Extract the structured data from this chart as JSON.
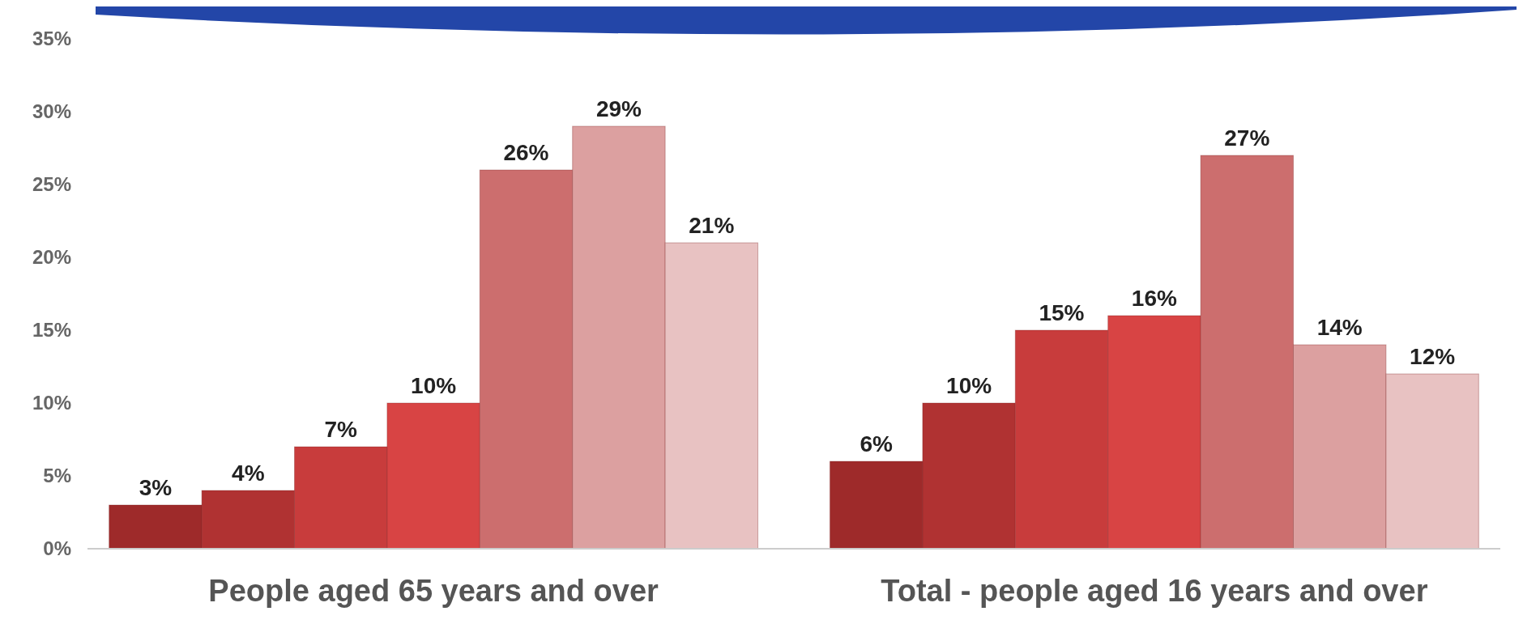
{
  "chart_data": {
    "type": "bar",
    "categories": [
      "People aged 65 years and over",
      "Total - people aged 16 years and over"
    ],
    "series": [
      {
        "color": "#9e2a2a",
        "values": [
          3,
          6
        ],
        "value_labels": [
          "3%",
          "6%"
        ]
      },
      {
        "color": "#b03232",
        "values": [
          4,
          10
        ],
        "value_labels": [
          "4%",
          "10%"
        ]
      },
      {
        "color": "#c83c3c",
        "values": [
          7,
          15
        ],
        "value_labels": [
          "7%",
          "15%"
        ]
      },
      {
        "color": "#d84444",
        "values": [
          10,
          16
        ],
        "value_labels": [
          "10%",
          "16%"
        ]
      },
      {
        "color": "#cc6e6e",
        "values": [
          26,
          27
        ],
        "value_labels": [
          "26%",
          "27%"
        ]
      },
      {
        "color": "#dca0a0",
        "values": [
          29,
          14
        ],
        "value_labels": [
          "29%",
          "14%"
        ]
      },
      {
        "color": "#e8c2c2",
        "values": [
          21,
          12
        ],
        "value_labels": [
          "21%",
          "12%"
        ]
      }
    ],
    "ylim": [
      0,
      35
    ],
    "yticks": [
      {
        "value": 0,
        "label": "0%"
      },
      {
        "value": 5,
        "label": "5%"
      },
      {
        "value": 10,
        "label": "10%"
      },
      {
        "value": 15,
        "label": "15%"
      },
      {
        "value": 20,
        "label": "20%"
      },
      {
        "value": 25,
        "label": "25%"
      },
      {
        "value": 30,
        "label": "30%"
      },
      {
        "value": 35,
        "label": "35%"
      }
    ]
  }
}
